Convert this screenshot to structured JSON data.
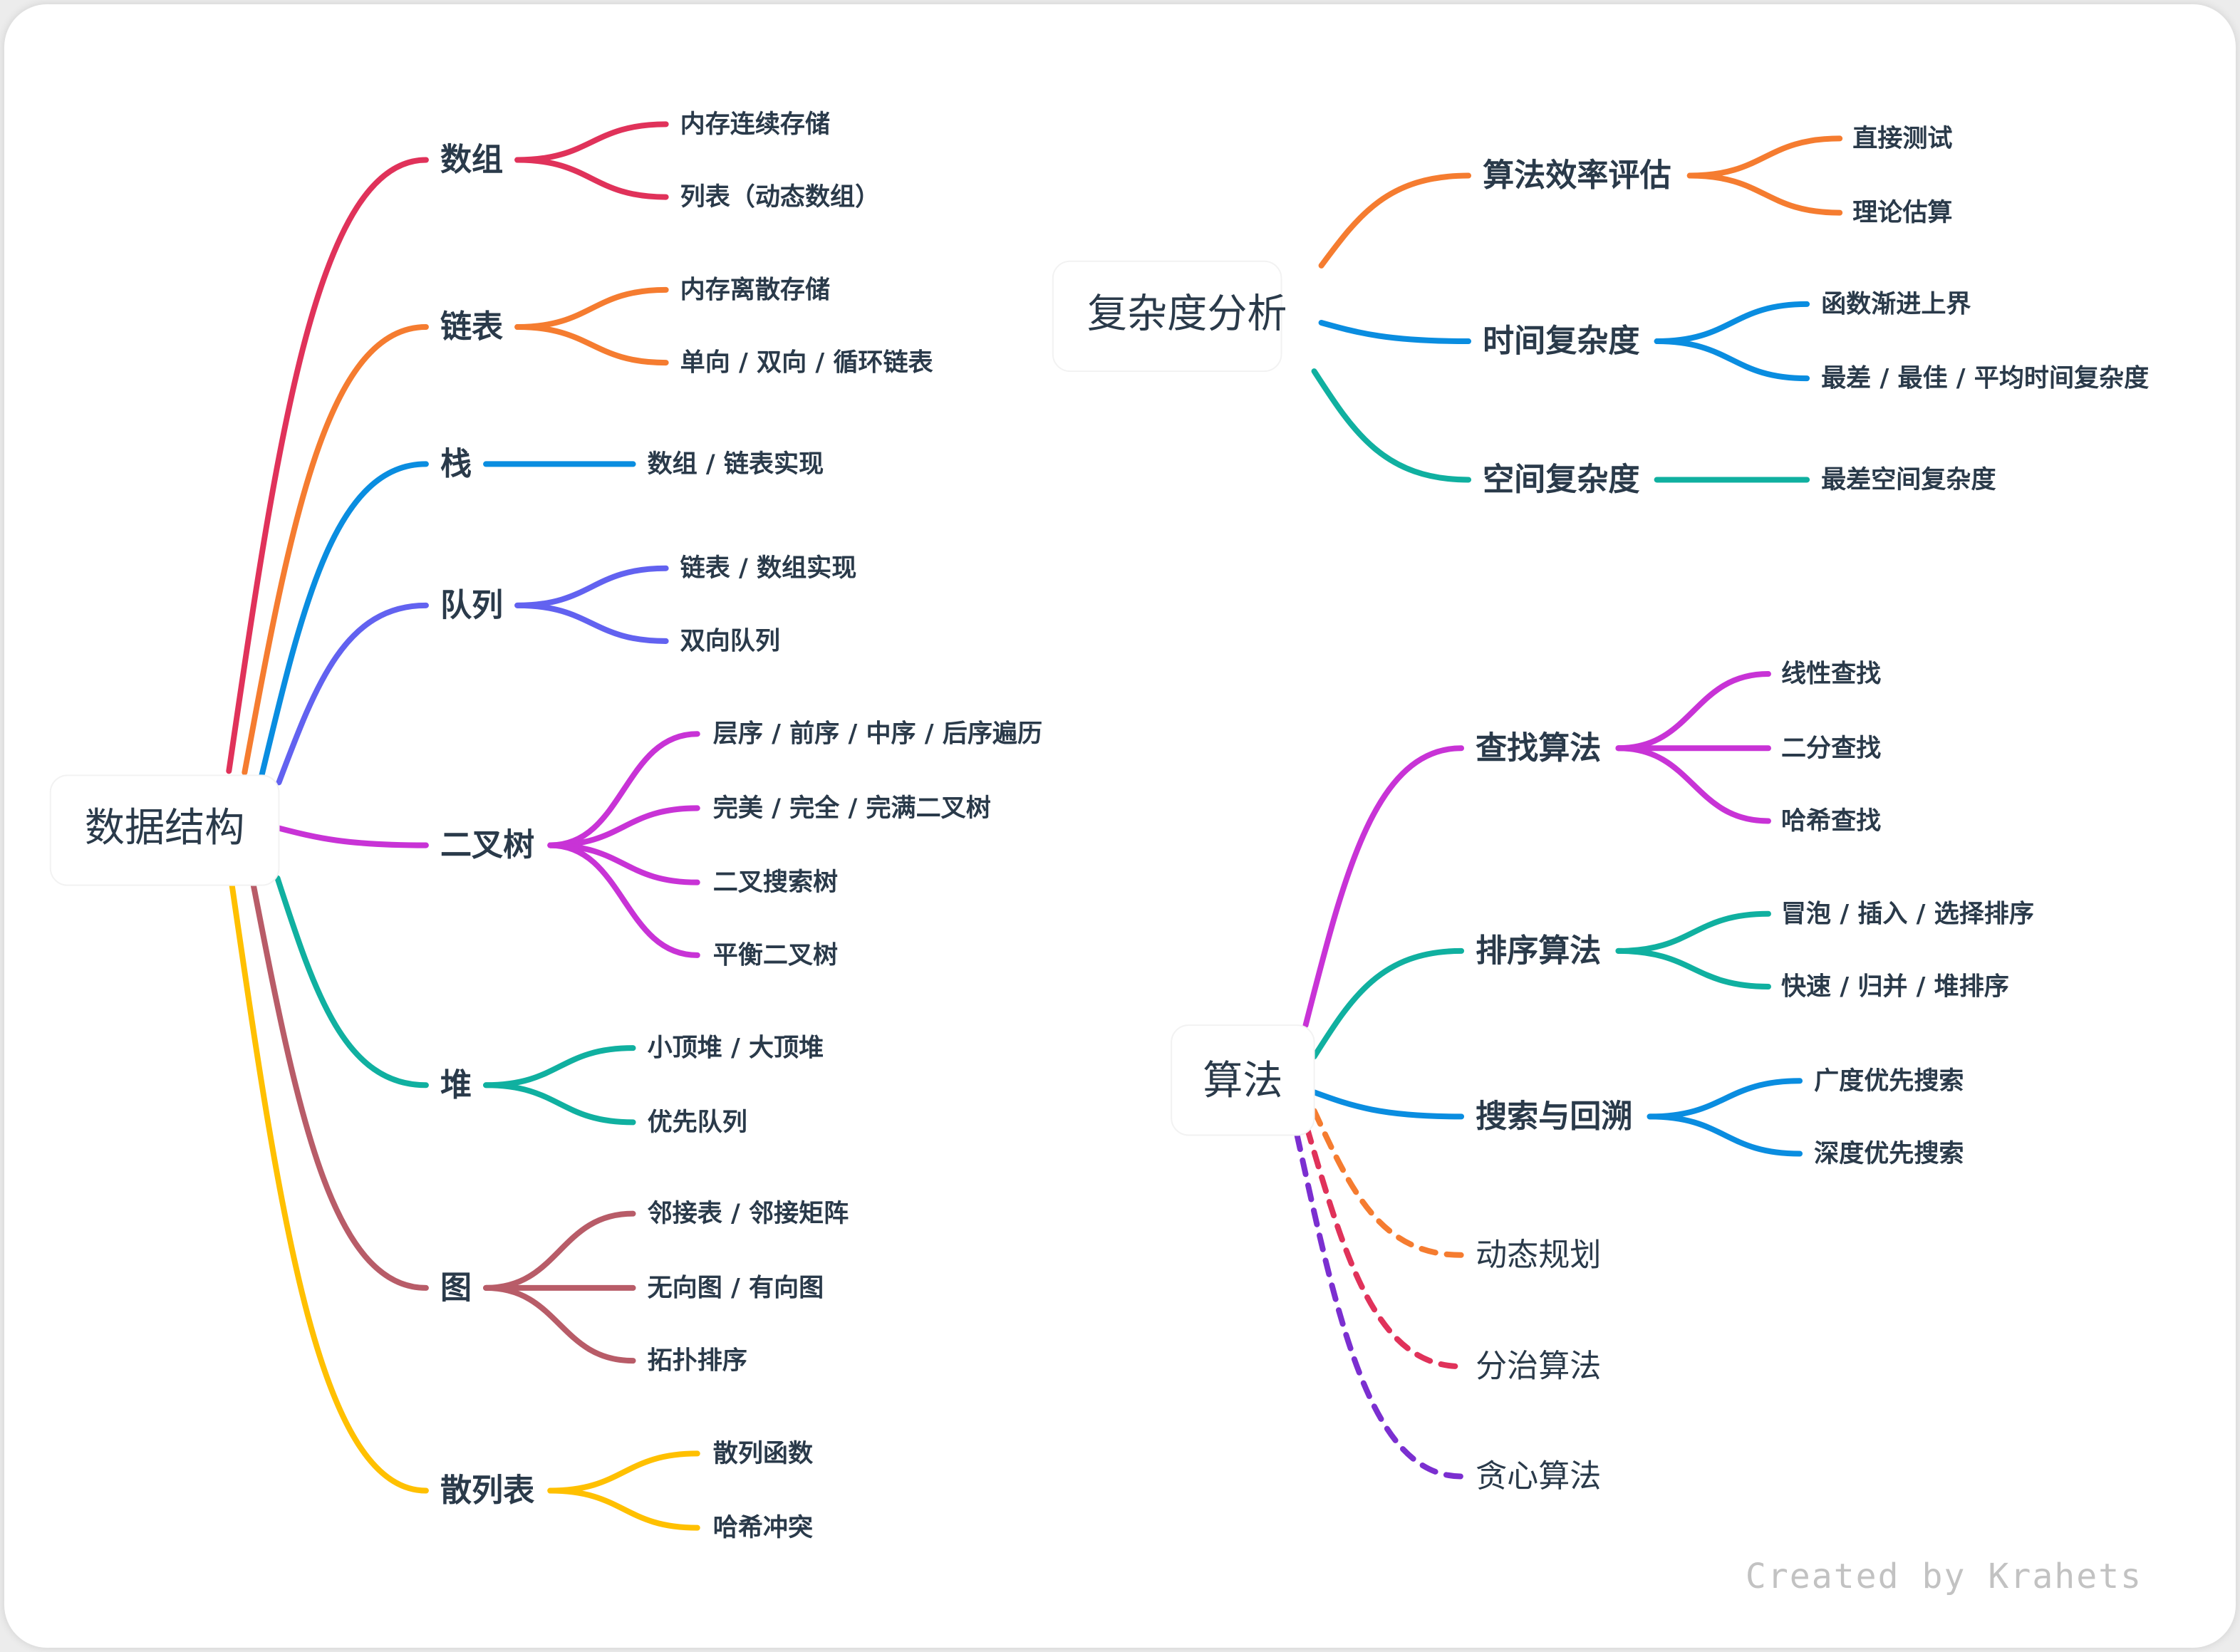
{
  "roots": [
    {
      "label": "数据结构",
      "children": [
        {
          "label": "数组",
          "color": "#e0325a",
          "children": [
            "内存连续存储",
            "列表（动态数组）"
          ]
        },
        {
          "label": "链表",
          "color": "#f57c30",
          "children": [
            "内存离散存储",
            "单向 / 双向 / 循环链表"
          ]
        },
        {
          "label": "栈",
          "color": "#0a8de0",
          "children": [
            "数组 / 链表实现"
          ]
        },
        {
          "label": "队列",
          "color": "#6262f0",
          "children": [
            "链表 / 数组实现",
            "双向队列"
          ]
        },
        {
          "label": "二叉树",
          "color": "#c833d6",
          "children": [
            "层序 / 前序 / 中序 / 后序遍历",
            "完美 / 完全 / 完满二叉树",
            "二叉搜索树",
            "平衡二叉树"
          ]
        },
        {
          "label": "堆",
          "color": "#10b0a0",
          "children": [
            "小顶堆 / 大顶堆",
            "优先队列"
          ]
        },
        {
          "label": "图",
          "color": "#b85c68",
          "children": [
            "邻接表 / 邻接矩阵",
            "无向图 / 有向图",
            "拓扑排序"
          ]
        },
        {
          "label": "散列表",
          "color": "#ffc000",
          "children": [
            "散列函数",
            "哈希冲突"
          ]
        }
      ]
    },
    {
      "label": "复杂度分析",
      "children": [
        {
          "label": "算法效率评估",
          "color": "#f57c30",
          "children": [
            "直接测试",
            "理论估算"
          ]
        },
        {
          "label": "时间复杂度",
          "color": "#0a8de0",
          "children": [
            "函数渐进上界",
            "最差 / 最佳 / 平均时间复杂度"
          ]
        },
        {
          "label": "空间复杂度",
          "color": "#10b0a0",
          "children": [
            "最差空间复杂度"
          ]
        }
      ]
    },
    {
      "label": "算法",
      "children": [
        {
          "label": "查找算法",
          "color": "#c833d6",
          "children": [
            "线性查找",
            "二分查找",
            "哈希查找"
          ]
        },
        {
          "label": "排序算法",
          "color": "#10b0a0",
          "children": [
            "冒泡 / 插入 / 选择排序",
            "快速 / 归并 / 堆排序"
          ]
        },
        {
          "label": "搜索与回溯",
          "color": "#0a8de0",
          "children": [
            "广度优先搜索",
            "深度优先搜索"
          ]
        },
        {
          "label": "动态规划",
          "color": "#f57c30",
          "dashed": true,
          "children": []
        },
        {
          "label": "分治算法",
          "color": "#e0325a",
          "dashed": true,
          "children": []
        },
        {
          "label": "贪心算法",
          "color": "#7b2fd0",
          "dashed": true,
          "children": []
        }
      ]
    }
  ],
  "footer": "Created by Krahets"
}
